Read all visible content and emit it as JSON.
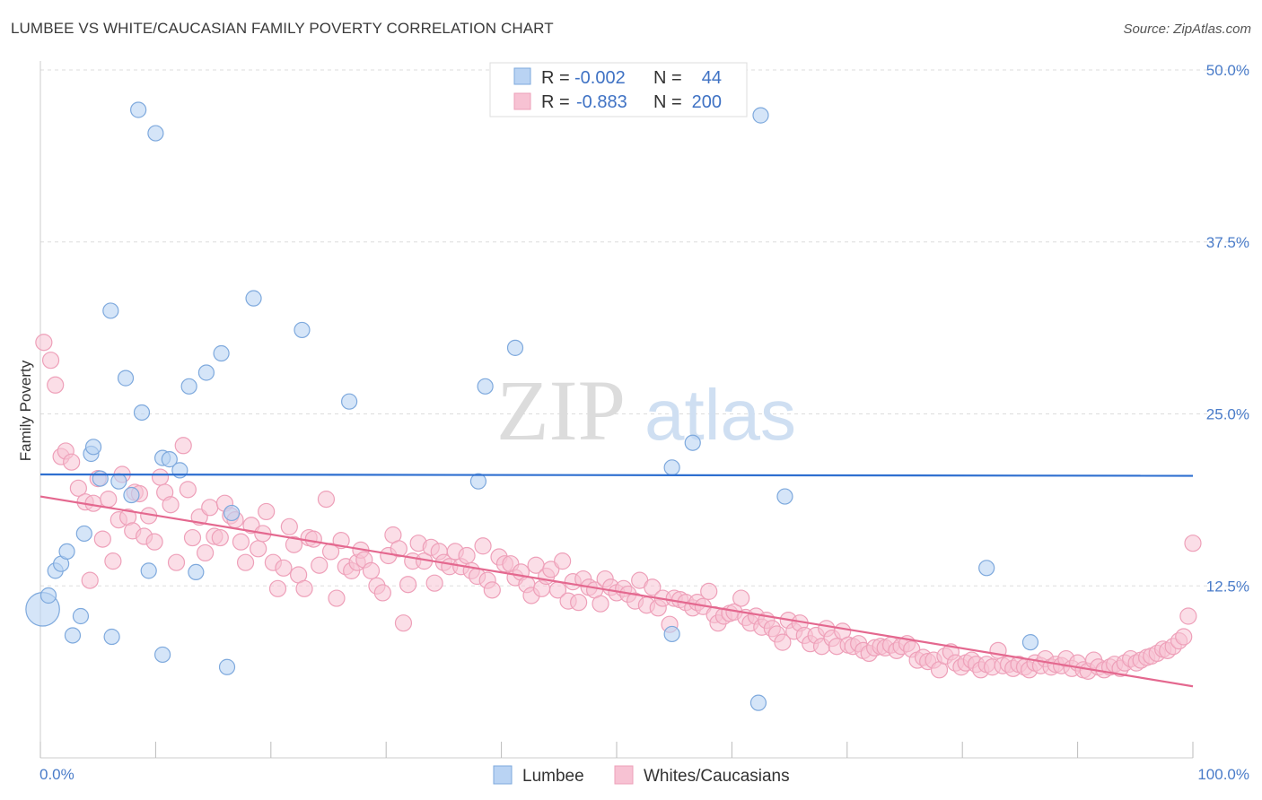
{
  "title": "LUMBEE VS WHITE/CAUCASIAN FAMILY POVERTY CORRELATION CHART",
  "source": "Source: ZipAtlas.com",
  "watermark": {
    "zip": "ZIP",
    "atlas": "atlas"
  },
  "colors": {
    "lumbee_fill": "#b9d3f3",
    "lumbee_stroke": "#7ea9dd",
    "lumbee_line": "#2e6fd0",
    "white_fill": "#f7c2d3",
    "white_stroke": "#eea0b9",
    "white_line": "#e4688f",
    "axis_text": "#4a7cc9",
    "grid": "#dddddd"
  },
  "legend": {
    "rows": [
      {
        "r_label": "R =",
        "r_value": "-0.002",
        "n_label": "N =",
        "n_value": "44"
      },
      {
        "r_label": "R =",
        "r_value": "-0.883",
        "n_label": "N =",
        "n_value": "200"
      }
    ]
  },
  "bottom_legend": [
    "Lumbee",
    "Whites/Caucasians"
  ],
  "chart_data": {
    "type": "scatter",
    "ylabel": "Family Poverty",
    "xlim": [
      0,
      100
    ],
    "ylim": [
      0,
      50
    ],
    "x_tick_labels": [
      "0.0%",
      "100.0%"
    ],
    "y_ticks": [
      12.5,
      25.0,
      37.5,
      50.0
    ],
    "y_tick_labels": [
      "12.5%",
      "25.0%",
      "37.5%",
      "50.0%"
    ],
    "grid": true,
    "series": [
      {
        "name": "Lumbee",
        "trend": {
          "x": [
            0,
            100
          ],
          "y": [
            20.6,
            20.5
          ]
        },
        "points": [
          [
            0.2,
            10.8,
            2.2
          ],
          [
            0.7,
            11.8,
            1
          ],
          [
            1.3,
            13.6,
            1
          ],
          [
            1.8,
            14.1,
            1
          ],
          [
            2.3,
            15.0,
            1
          ],
          [
            2.8,
            8.9,
            1
          ],
          [
            3.5,
            10.3,
            1
          ],
          [
            3.8,
            16.3,
            1
          ],
          [
            4.4,
            22.1,
            1
          ],
          [
            4.6,
            22.6,
            1
          ],
          [
            5.2,
            20.3,
            1
          ],
          [
            6.1,
            32.5,
            1
          ],
          [
            6.2,
            8.8,
            1
          ],
          [
            6.8,
            20.1,
            1
          ],
          [
            7.4,
            27.6,
            1
          ],
          [
            7.9,
            19.1,
            1
          ],
          [
            8.5,
            47.1,
            1
          ],
          [
            8.8,
            25.1,
            1
          ],
          [
            9.4,
            13.6,
            1
          ],
          [
            10.0,
            45.4,
            1
          ],
          [
            10.6,
            7.5,
            1
          ],
          [
            10.6,
            21.8,
            1
          ],
          [
            11.2,
            21.7,
            1
          ],
          [
            12.1,
            20.9,
            1
          ],
          [
            12.9,
            27.0,
            1
          ],
          [
            13.5,
            13.5,
            1
          ],
          [
            14.4,
            28.0,
            1
          ],
          [
            15.7,
            29.4,
            1
          ],
          [
            16.2,
            6.6,
            1
          ],
          [
            16.6,
            17.8,
            1
          ],
          [
            18.5,
            33.4,
            1
          ],
          [
            22.7,
            31.1,
            1
          ],
          [
            26.8,
            25.9,
            1
          ],
          [
            38.0,
            20.1,
            1
          ],
          [
            38.6,
            27.0,
            1
          ],
          [
            41.2,
            29.8,
            1
          ],
          [
            54.8,
            21.1,
            1
          ],
          [
            54.8,
            9.0,
            1
          ],
          [
            56.6,
            22.9,
            1
          ],
          [
            62.3,
            4.0,
            1
          ],
          [
            62.5,
            46.7,
            1
          ],
          [
            64.6,
            19.0,
            1
          ],
          [
            82.1,
            13.8,
            1
          ],
          [
            85.9,
            8.4,
            1
          ]
        ]
      },
      {
        "name": "Whites/Caucasians",
        "trend": {
          "x": [
            0,
            100
          ],
          "y": [
            19.0,
            5.2
          ]
        },
        "points": [
          [
            0.3,
            30.2
          ],
          [
            0.9,
            28.9
          ],
          [
            1.3,
            27.1
          ],
          [
            1.8,
            21.9
          ],
          [
            2.2,
            22.3
          ],
          [
            2.7,
            21.5
          ],
          [
            3.3,
            19.6
          ],
          [
            3.9,
            18.6
          ],
          [
            4.3,
            12.9
          ],
          [
            4.6,
            18.5
          ],
          [
            5.0,
            20.3
          ],
          [
            5.4,
            15.9
          ],
          [
            5.9,
            18.8
          ],
          [
            6.3,
            14.3
          ],
          [
            6.8,
            17.3
          ],
          [
            7.1,
            20.6
          ],
          [
            7.6,
            17.5
          ],
          [
            8.0,
            16.5
          ],
          [
            8.2,
            19.3
          ],
          [
            8.6,
            19.2
          ],
          [
            9.0,
            16.1
          ],
          [
            9.4,
            17.6
          ],
          [
            9.9,
            15.7
          ],
          [
            10.4,
            20.4
          ],
          [
            10.8,
            19.3
          ],
          [
            11.3,
            18.4
          ],
          [
            11.8,
            14.2
          ],
          [
            12.4,
            22.7
          ],
          [
            12.8,
            19.5
          ],
          [
            13.2,
            16.0
          ],
          [
            13.8,
            17.5
          ],
          [
            14.3,
            14.9
          ],
          [
            14.7,
            18.2
          ],
          [
            15.1,
            16.1
          ],
          [
            15.6,
            16.0
          ],
          [
            16.0,
            18.5
          ],
          [
            16.5,
            17.6
          ],
          [
            16.9,
            17.3
          ],
          [
            17.4,
            15.7
          ],
          [
            17.8,
            14.2
          ],
          [
            18.3,
            16.9
          ],
          [
            18.9,
            15.2
          ],
          [
            19.3,
            16.3
          ],
          [
            19.6,
            17.9
          ],
          [
            20.2,
            14.2
          ],
          [
            20.6,
            12.3
          ],
          [
            21.1,
            13.8
          ],
          [
            21.6,
            16.8
          ],
          [
            22.0,
            15.5
          ],
          [
            22.4,
            13.3
          ],
          [
            22.9,
            12.3
          ],
          [
            23.3,
            16.0
          ],
          [
            23.7,
            15.9
          ],
          [
            24.2,
            14.0
          ],
          [
            24.8,
            18.8
          ],
          [
            25.2,
            15.0
          ],
          [
            25.7,
            11.6
          ],
          [
            26.1,
            15.8
          ],
          [
            26.5,
            13.9
          ],
          [
            27.0,
            13.6
          ],
          [
            27.5,
            14.2
          ],
          [
            27.8,
            15.1
          ],
          [
            28.1,
            14.4
          ],
          [
            28.7,
            13.6
          ],
          [
            29.2,
            12.5
          ],
          [
            29.7,
            12.0
          ],
          [
            30.2,
            14.7
          ],
          [
            30.6,
            16.2
          ],
          [
            31.1,
            15.2
          ],
          [
            31.5,
            9.8
          ],
          [
            31.9,
            12.6
          ],
          [
            32.3,
            14.3
          ],
          [
            32.8,
            15.6
          ],
          [
            33.3,
            14.3
          ],
          [
            33.9,
            15.3
          ],
          [
            34.2,
            12.7
          ],
          [
            34.6,
            15.0
          ],
          [
            35.0,
            14.2
          ],
          [
            35.5,
            13.9
          ],
          [
            36.0,
            15.0
          ],
          [
            36.5,
            13.9
          ],
          [
            37.0,
            14.7
          ],
          [
            37.4,
            13.6
          ],
          [
            37.9,
            13.2
          ],
          [
            38.4,
            15.4
          ],
          [
            38.8,
            12.9
          ],
          [
            39.2,
            12.2
          ],
          [
            39.8,
            14.6
          ],
          [
            40.3,
            14.1
          ],
          [
            40.8,
            14.1
          ],
          [
            41.2,
            13.1
          ],
          [
            41.7,
            13.5
          ],
          [
            42.2,
            12.6
          ],
          [
            42.6,
            11.8
          ],
          [
            43.0,
            14.0
          ],
          [
            43.5,
            12.3
          ],
          [
            43.9,
            13.2
          ],
          [
            44.3,
            13.7
          ],
          [
            44.9,
            12.2
          ],
          [
            45.3,
            14.3
          ],
          [
            45.8,
            11.4
          ],
          [
            46.2,
            12.8
          ],
          [
            46.7,
            11.3
          ],
          [
            47.1,
            13.0
          ],
          [
            47.6,
            12.4
          ],
          [
            48.1,
            12.2
          ],
          [
            48.6,
            11.2
          ],
          [
            49.0,
            13.0
          ],
          [
            49.5,
            12.4
          ],
          [
            50.0,
            12.0
          ],
          [
            50.6,
            12.3
          ],
          [
            51.0,
            11.9
          ],
          [
            51.6,
            11.4
          ],
          [
            52.0,
            12.9
          ],
          [
            52.6,
            11.1
          ],
          [
            53.1,
            12.4
          ],
          [
            53.6,
            10.9
          ],
          [
            54.0,
            11.6
          ],
          [
            54.6,
            9.7
          ],
          [
            55.0,
            11.6
          ],
          [
            55.5,
            11.5
          ],
          [
            56.0,
            11.3
          ],
          [
            56.6,
            10.9
          ],
          [
            57.0,
            11.3
          ],
          [
            57.5,
            11.0
          ],
          [
            58.0,
            12.1
          ],
          [
            58.5,
            10.4
          ],
          [
            58.8,
            9.8
          ],
          [
            59.3,
            10.3
          ],
          [
            59.8,
            10.5
          ],
          [
            60.2,
            10.6
          ],
          [
            60.8,
            11.6
          ],
          [
            61.2,
            10.2
          ],
          [
            61.6,
            9.8
          ],
          [
            62.1,
            10.3
          ],
          [
            62.6,
            9.5
          ],
          [
            63.0,
            10.0
          ],
          [
            63.5,
            9.4
          ],
          [
            63.9,
            9.0
          ],
          [
            64.4,
            8.4
          ],
          [
            64.9,
            10.0
          ],
          [
            65.4,
            9.2
          ],
          [
            65.9,
            9.8
          ],
          [
            66.3,
            8.9
          ],
          [
            66.8,
            8.3
          ],
          [
            67.3,
            8.9
          ],
          [
            67.8,
            8.1
          ],
          [
            68.2,
            9.4
          ],
          [
            68.7,
            8.7
          ],
          [
            69.1,
            8.1
          ],
          [
            69.6,
            9.2
          ],
          [
            70.1,
            8.2
          ],
          [
            70.5,
            8.1
          ],
          [
            71.0,
            8.3
          ],
          [
            71.4,
            7.8
          ],
          [
            71.9,
            7.6
          ],
          [
            72.4,
            8.0
          ],
          [
            72.9,
            8.1
          ],
          [
            73.3,
            8.0
          ],
          [
            73.8,
            8.2
          ],
          [
            74.3,
            7.8
          ],
          [
            74.7,
            8.1
          ],
          [
            75.2,
            8.3
          ],
          [
            75.6,
            7.9
          ],
          [
            76.1,
            7.1
          ],
          [
            76.6,
            7.3
          ],
          [
            77.0,
            7.0
          ],
          [
            77.5,
            7.1
          ],
          [
            78.0,
            6.4
          ],
          [
            78.5,
            7.4
          ],
          [
            79.0,
            7.7
          ],
          [
            79.4,
            6.9
          ],
          [
            79.9,
            6.6
          ],
          [
            80.3,
            6.9
          ],
          [
            80.8,
            7.1
          ],
          [
            81.2,
            6.8
          ],
          [
            81.6,
            6.4
          ],
          [
            82.1,
            6.8
          ],
          [
            82.6,
            6.6
          ],
          [
            83.1,
            7.8
          ],
          [
            83.5,
            6.7
          ],
          [
            84.0,
            6.8
          ],
          [
            84.4,
            6.5
          ],
          [
            84.9,
            6.8
          ],
          [
            85.4,
            6.6
          ],
          [
            85.8,
            6.4
          ],
          [
            86.3,
            6.9
          ],
          [
            86.8,
            6.7
          ],
          [
            87.2,
            7.2
          ],
          [
            87.7,
            6.6
          ],
          [
            88.1,
            6.8
          ],
          [
            88.6,
            6.7
          ],
          [
            89.0,
            7.2
          ],
          [
            89.5,
            6.5
          ],
          [
            90.0,
            6.9
          ],
          [
            90.5,
            6.4
          ],
          [
            90.9,
            6.3
          ],
          [
            91.4,
            7.1
          ],
          [
            91.8,
            6.6
          ],
          [
            92.3,
            6.4
          ],
          [
            92.8,
            6.6
          ],
          [
            93.2,
            6.8
          ],
          [
            93.7,
            6.5
          ],
          [
            94.1,
            6.9
          ],
          [
            94.6,
            7.2
          ],
          [
            95.1,
            6.9
          ],
          [
            95.5,
            7.1
          ],
          [
            96.0,
            7.3
          ],
          [
            96.4,
            7.4
          ],
          [
            96.9,
            7.6
          ],
          [
            97.4,
            7.9
          ],
          [
            97.8,
            7.8
          ],
          [
            98.3,
            8.1
          ],
          [
            98.8,
            8.5
          ],
          [
            99.2,
            8.8
          ],
          [
            99.6,
            10.3
          ],
          [
            100.0,
            15.6
          ]
        ]
      }
    ]
  }
}
